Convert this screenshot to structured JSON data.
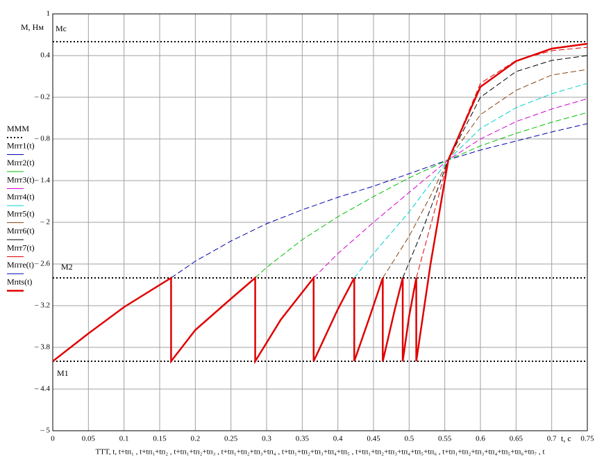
{
  "chart_data": {
    "type": "line",
    "y_label": "M, Нм",
    "x_label": "t, c",
    "x_axis_expression": "TTT, t, t+tп₁ , t+tп₁+tп₂ , t+tп₁+tп₂+tп₃ , t+tп₁+tп₂+tп₃+tп₄ , t+tп₁+tп₂+tп₃+tп₄+tп₅ , t+tп₁+tп₂+tп₃+tп₄+tп₅+tп₆ , t+tп₁+tп₂+tп₃+tп₄+tп₅+tп₆+tп₇ , t",
    "xlim": [
      0,
      0.75
    ],
    "ylim": [
      -5,
      1
    ],
    "xticks": [
      0,
      0.05,
      0.1,
      0.15,
      0.2,
      0.25,
      0.3,
      0.35,
      0.4,
      0.45,
      0.5,
      0.55,
      0.6,
      0.65,
      0.7,
      0.75
    ],
    "yticks": [
      1,
      0.4,
      {
        "value": -0.2,
        "label": "– 0.2"
      },
      {
        "value": -0.8,
        "label": "– 0.8"
      },
      {
        "value": -1.4,
        "label": "– 1.4"
      },
      {
        "value": -2,
        "label": "– 2"
      },
      {
        "value": -2.6,
        "label": "– 2.6"
      },
      {
        "value": -3.2,
        "label": "– 3.2"
      },
      {
        "value": -3.8,
        "label": "– 3.8"
      },
      {
        "value": -4.4,
        "label": "– 4.4"
      },
      {
        "value": -5,
        "label": "– 5"
      }
    ],
    "grid": true,
    "levels": {
      "name": "MMM",
      "color": "#000000",
      "values": [
        0.6,
        -2.8,
        -4
      ],
      "labels": [
        "Mc",
        "M2",
        "M1"
      ]
    },
    "series": [
      {
        "name": "Mпт1(t)",
        "color": "#0000b0",
        "style": "dashed",
        "x": [
          0.166,
          0.2,
          0.25,
          0.3,
          0.35,
          0.4,
          0.45,
          0.5,
          0.555,
          0.6,
          0.65,
          0.7,
          0.75
        ],
        "values": [
          -2.8,
          -2.56,
          -2.27,
          -2.02,
          -1.82,
          -1.64,
          -1.48,
          -1.3,
          -1.1,
          -0.96,
          -0.83,
          -0.7,
          -0.58
        ]
      },
      {
        "name": "Mпт2(t)",
        "color": "#00c000",
        "style": "dashed",
        "x": [
          0.284,
          0.3,
          0.35,
          0.4,
          0.45,
          0.5,
          0.555,
          0.6,
          0.65,
          0.7,
          0.75
        ],
        "values": [
          -2.8,
          -2.65,
          -2.25,
          -1.92,
          -1.63,
          -1.36,
          -1.1,
          -0.9,
          -0.72,
          -0.56,
          -0.42
        ]
      },
      {
        "name": "Mпт3(t)",
        "color": "#d000d0",
        "style": "dashed",
        "x": [
          0.366,
          0.4,
          0.45,
          0.5,
          0.555,
          0.6,
          0.65,
          0.7,
          0.75
        ],
        "values": [
          -2.8,
          -2.45,
          -2.0,
          -1.57,
          -1.1,
          -0.8,
          -0.55,
          -0.37,
          -0.22
        ]
      },
      {
        "name": "Mпт4(t)",
        "color": "#00d0d0",
        "style": "dashed",
        "x": [
          0.423,
          0.45,
          0.5,
          0.555,
          0.6,
          0.65,
          0.7,
          0.75
        ],
        "values": [
          -2.8,
          -2.45,
          -1.85,
          -1.1,
          -0.65,
          -0.35,
          -0.15,
          0.0
        ]
      },
      {
        "name": "Mпт5(t)",
        "color": "#8b4513",
        "style": "dashed",
        "x": [
          0.463,
          0.5,
          0.53,
          0.555,
          0.6,
          0.65,
          0.7,
          0.75
        ],
        "values": [
          -2.8,
          -2.2,
          -1.62,
          -1.1,
          -0.45,
          -0.1,
          0.12,
          0.2
        ]
      },
      {
        "name": "Mпт6(t)",
        "color": "#000000",
        "style": "dashed",
        "x": [
          0.491,
          0.52,
          0.555,
          0.6,
          0.65,
          0.7,
          0.75
        ],
        "values": [
          -2.8,
          -2.08,
          -1.1,
          -0.2,
          0.17,
          0.33,
          0.4
        ]
      },
      {
        "name": "Mпт7(t)",
        "color": "#e00000",
        "style": "dashed",
        "x": [
          0.51,
          0.53,
          0.555,
          0.6,
          0.65,
          0.7,
          0.75
        ],
        "values": [
          -2.8,
          -2.05,
          -1.1,
          0.0,
          0.33,
          0.47,
          0.52
        ]
      },
      {
        "name": "Mпте(t)",
        "color": "#0000b0",
        "style": "dashed",
        "x": [
          0,
          0.05,
          0.1,
          0.166
        ],
        "values": [
          -4,
          -3.6,
          -3.22,
          -2.8
        ]
      },
      {
        "name": "Mпts(t)",
        "color": "#e00000",
        "style": "solid",
        "x": [
          0,
          0.05,
          0.1,
          0.166,
          0.166,
          0.2,
          0.25,
          0.284,
          0.284,
          0.32,
          0.366,
          0.366,
          0.4,
          0.423,
          0.423,
          0.445,
          0.463,
          0.463,
          0.48,
          0.491,
          0.491,
          0.5,
          0.51,
          0.51,
          0.53,
          0.555,
          0.6,
          0.65,
          0.7,
          0.75
        ],
        "values": [
          -4,
          -3.6,
          -3.22,
          -2.8,
          -4,
          -3.55,
          -3.1,
          -2.8,
          -4,
          -3.4,
          -2.8,
          -4,
          -3.25,
          -2.8,
          -4,
          -3.35,
          -2.8,
          -4,
          -3.25,
          -2.8,
          -4,
          -3.35,
          -2.8,
          -4,
          -2.6,
          -1.1,
          -0.05,
          0.32,
          0.5,
          0.57
        ]
      }
    ]
  }
}
